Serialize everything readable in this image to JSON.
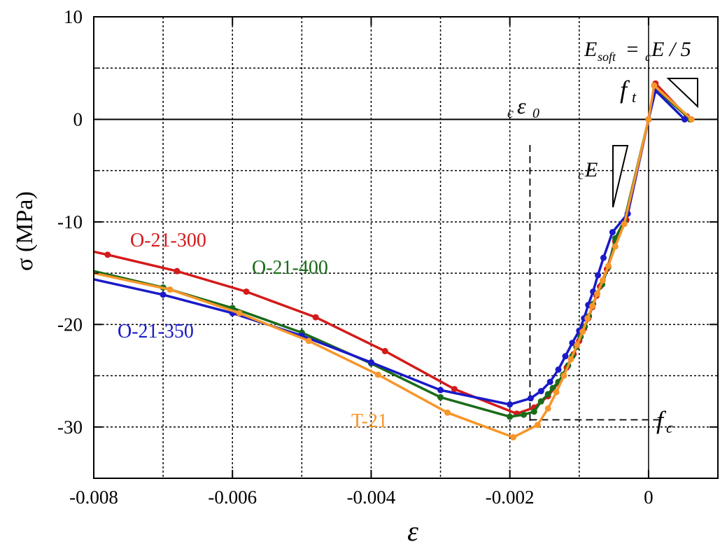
{
  "chart_data": {
    "type": "line",
    "xlabel": "ε",
    "ylabel": "σ (MPa)",
    "xlim": [
      -0.008,
      0.001
    ],
    "ylim": [
      -35,
      10
    ],
    "xticks": [
      -0.008,
      -0.006,
      -0.004,
      -0.002,
      0
    ],
    "xtick_labels": [
      "-0.008",
      "-0.006",
      "-0.004",
      "-0.002",
      "0"
    ],
    "yticks": [
      10,
      0,
      -10,
      -20,
      -30
    ],
    "ytick_labels": [
      "10",
      "0",
      "-10",
      "-20",
      "-30"
    ],
    "grid": "dotted",
    "colors": {
      "O-21-300": "#d41a1a",
      "O-21-400": "#1a6b1a",
      "O-21-350": "#1a1ac8",
      "T-21": "#f7962a"
    },
    "series": [
      {
        "name": "O-21-300",
        "x": [
          -0.008,
          -0.0078,
          -0.0068,
          -0.0058,
          -0.0048,
          -0.0038,
          -0.0028,
          -0.0019,
          -0.00165,
          -0.00145,
          -0.0013,
          -0.00118,
          -0.00108,
          -0.001,
          -0.00093,
          -0.00087,
          -0.00081,
          -0.00075,
          -0.0007,
          -0.0006,
          -0.00048,
          -0.00032,
          0,
          0.0001,
          0.00055,
          0.0006
        ],
        "y": [
          -12.9,
          -13.2,
          -14.8,
          -16.8,
          -19.3,
          -22.6,
          -26.3,
          -28.7,
          -28.1,
          -27.0,
          -25.7,
          -24.2,
          -22.9,
          -21.6,
          -20.4,
          -19.4,
          -18.3,
          -17.2,
          -16.3,
          -14.6,
          -11.9,
          -9.8,
          0,
          3.5,
          0.3,
          0
        ]
      },
      {
        "name": "O-21-400",
        "x": [
          -0.008,
          -0.007,
          -0.006,
          -0.005,
          -0.004,
          -0.003,
          -0.002,
          -0.0018,
          -0.00165,
          -0.00155,
          -0.00145,
          -0.00138,
          -0.0013,
          -0.00123,
          -0.00116,
          -0.0011,
          -0.00104,
          -0.00098,
          -0.00092,
          -0.00086,
          -0.0008,
          -0.00074,
          -0.00067,
          -0.00058,
          -0.00048,
          -0.00035,
          0,
          0.0001,
          0.0006
        ],
        "y": [
          -14.8,
          -16.4,
          -18.4,
          -20.8,
          -23.8,
          -27.1,
          -29.0,
          -28.8,
          -28.5,
          -27.5,
          -26.8,
          -26.2,
          -25.6,
          -24.9,
          -24.0,
          -23.1,
          -22.2,
          -21.2,
          -20.2,
          -19.2,
          -18.0,
          -17.0,
          -16.1,
          -14.4,
          -11.6,
          -9.9,
          0,
          3.0,
          0
        ]
      },
      {
        "name": "O-21-350",
        "x": [
          -0.008,
          -0.007,
          -0.006,
          -0.005,
          -0.004,
          -0.003,
          -0.002,
          -0.0017,
          -0.00155,
          -0.00142,
          -0.0013,
          -0.0012,
          -0.0011,
          -0.001,
          -0.00093,
          -0.00087,
          -0.0008,
          -0.00073,
          -0.00065,
          -0.00052,
          -0.0003,
          0,
          0.0001,
          0.00052
        ],
        "y": [
          -15.6,
          -17.1,
          -18.9,
          -21.1,
          -23.7,
          -26.4,
          -27.8,
          -27.2,
          -26.5,
          -25.6,
          -24.4,
          -23.1,
          -21.8,
          -20.6,
          -19.4,
          -18.1,
          -16.8,
          -15.2,
          -13.5,
          -11.0,
          -9.2,
          0,
          2.8,
          0
        ]
      },
      {
        "name": "T-21",
        "x": [
          -0.008,
          -0.0069,
          -0.0059,
          -0.0049,
          -0.0039,
          -0.0029,
          -0.00195,
          -0.0016,
          -0.00145,
          -0.00133,
          -0.00122,
          -0.00112,
          -0.00103,
          -0.00095,
          -0.00088,
          -0.00081,
          -0.00074,
          -0.00066,
          -0.00058,
          -0.00048,
          -0.00035,
          0,
          8e-05,
          0.00062
        ],
        "y": [
          -15.0,
          -16.6,
          -18.9,
          -21.6,
          -24.9,
          -28.6,
          -31.0,
          -29.8,
          -28.2,
          -26.6,
          -25.0,
          -23.4,
          -22.0,
          -20.7,
          -19.4,
          -18.2,
          -17.0,
          -15.7,
          -14.3,
          -12.4,
          -10.2,
          0,
          3.3,
          0
        ]
      }
    ],
    "annotations": {
      "eps0": "ε",
      "eps0_sub": "0",
      "pre_c": "c",
      "cE": "E",
      "fc": "f",
      "fc_sub": "c",
      "ft": "f",
      "ft_sub": "t",
      "esoft_E": "E",
      "esoft_sub": "soft",
      "esoft_mid": " = ",
      "esoft_tail": "E / 5"
    }
  }
}
